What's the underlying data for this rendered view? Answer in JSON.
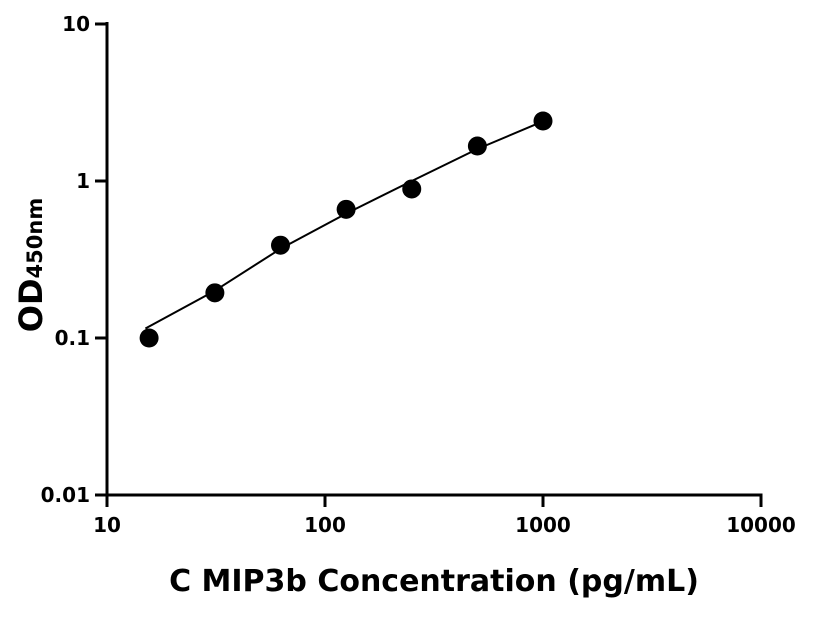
{
  "chart_data": {
    "type": "scatter",
    "title": "",
    "xlabel": "C MIP3b Concentration (pg/mL)",
    "ylabel": "OD",
    "ylabel_subscript": "450nm",
    "xscale": "log",
    "yscale": "log",
    "xlim": [
      10,
      10000
    ],
    "ylim": [
      0.01,
      10
    ],
    "xticks": [
      10,
      100,
      1000,
      10000
    ],
    "xtick_labels": [
      "10",
      "100",
      "1000",
      "10000"
    ],
    "yticks": [
      0.01,
      0.1,
      1,
      10
    ],
    "ytick_labels": [
      "0.01",
      "0.1",
      "1",
      "10"
    ],
    "grid": false,
    "legend": "none",
    "point_color": "#000000",
    "series": [
      {
        "x": [
          15.6,
          31.25,
          62.5,
          125,
          250,
          500,
          1000
        ],
        "y": [
          0.1,
          0.194,
          0.39,
          0.66,
          0.89,
          1.67,
          2.41
        ]
      }
    ],
    "fit_curve": {
      "x": [
        15,
        31.25,
        62.5,
        125,
        250,
        500,
        1000
      ],
      "y": [
        0.115,
        0.2,
        0.37,
        0.62,
        1.0,
        1.6,
        2.4
      ]
    }
  }
}
